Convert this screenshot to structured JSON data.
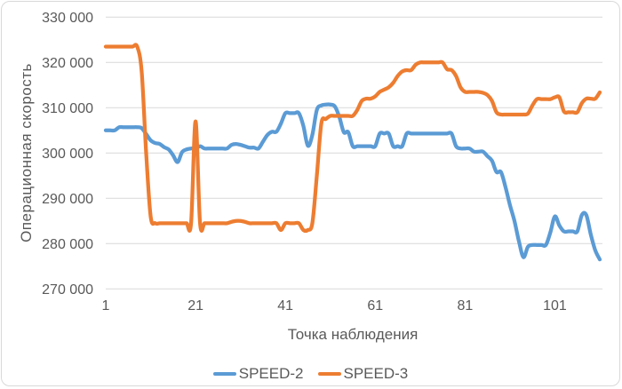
{
  "chart_data": {
    "type": "line",
    "title": "",
    "ylabel": "Операционная скорость",
    "xlabel": "Точка наблюдения",
    "ylim": [
      270000,
      330000
    ],
    "y_ticks": [
      330000,
      320000,
      310000,
      300000,
      290000,
      280000,
      270000
    ],
    "y_tick_labels": [
      "330 000",
      "320 000",
      "310 000",
      "300 000",
      "290 000",
      "280 000",
      "270 000"
    ],
    "x_ticks": [
      1,
      21,
      41,
      61,
      81,
      101
    ],
    "x_range": [
      1,
      111
    ],
    "grid": true,
    "smooth_lines": true,
    "legend_position": "bottom",
    "grid_color": "#d9d9d9",
    "text_color": "#595959",
    "series": [
      {
        "name": "SPEED-2",
        "color": "#5B9BD5",
        "values": [
          305000,
          305000,
          305000,
          305700,
          305700,
          305700,
          305700,
          305700,
          305500,
          304200,
          302800,
          302200,
          302000,
          301300,
          300800,
          299500,
          298000,
          300200,
          300800,
          301000,
          301000,
          301500,
          301000,
          301000,
          301000,
          301000,
          301000,
          301000,
          301800,
          302000,
          301800,
          301500,
          301200,
          301200,
          301000,
          302500,
          304000,
          304700,
          304700,
          306500,
          308800,
          308800,
          308800,
          308800,
          306000,
          301600,
          304000,
          309500,
          310500,
          310700,
          310700,
          310300,
          308000,
          304600,
          304600,
          301500,
          301500,
          301500,
          301500,
          301500,
          301500,
          304300,
          304300,
          304300,
          301500,
          301500,
          301500,
          304300,
          304300,
          304300,
          304300,
          304300,
          304300,
          304300,
          304300,
          304300,
          304300,
          304300,
          301500,
          301000,
          301000,
          301000,
          300300,
          300300,
          300300,
          299300,
          298300,
          295800,
          295800,
          292500,
          288500,
          285000,
          280500,
          277000,
          279300,
          279700,
          279700,
          279700,
          279700,
          282500,
          286000,
          284000,
          282700,
          282700,
          282700,
          282700,
          286300,
          286300,
          282000,
          278500,
          276500
        ]
      },
      {
        "name": "SPEED-3",
        "color": "#ED7D31",
        "values": [
          323500,
          323500,
          323500,
          323500,
          323500,
          323500,
          323500,
          323500,
          318000,
          300000,
          286000,
          284500,
          284500,
          284500,
          284500,
          284500,
          284500,
          284500,
          284500,
          284500,
          307000,
          284500,
          284500,
          284500,
          284500,
          284500,
          284500,
          284500,
          284800,
          285000,
          285000,
          284800,
          284500,
          284500,
          284500,
          284500,
          284500,
          284500,
          284500,
          283000,
          284500,
          284500,
          284500,
          284500,
          283000,
          283000,
          284500,
          295000,
          306500,
          307500,
          308200,
          308200,
          308200,
          308200,
          308200,
          308200,
          309500,
          311500,
          312000,
          312000,
          312500,
          313500,
          314000,
          314500,
          315500,
          317000,
          318000,
          318300,
          318300,
          319500,
          320000,
          320000,
          320000,
          320000,
          320000,
          320000,
          318500,
          318300,
          317000,
          314500,
          313500,
          313500,
          313500,
          313500,
          313300,
          312800,
          311500,
          309000,
          308500,
          308500,
          308500,
          308500,
          308500,
          308500,
          308700,
          310500,
          311900,
          311900,
          311900,
          311900,
          312300,
          312300,
          309200,
          309000,
          309000,
          309000,
          311000,
          312000,
          312000,
          312000,
          313400
        ]
      }
    ]
  }
}
